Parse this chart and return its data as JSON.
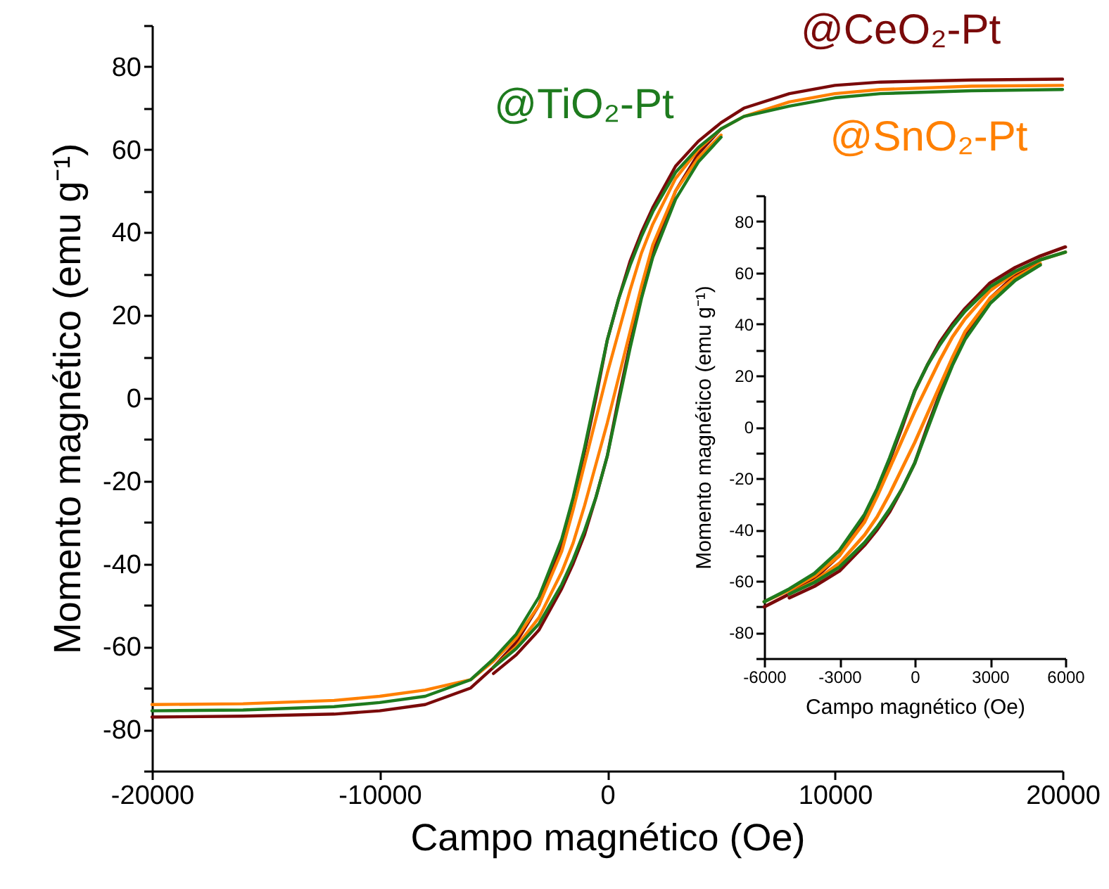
{
  "chart_data": [
    {
      "type": "line",
      "xlabel": "Campo magnético (Oe)",
      "ylabel": "Momento magnético (emu g⁻¹)",
      "xlim": [
        -20000,
        20000
      ],
      "xticks": [
        -20000,
        -10000,
        0,
        10000,
        20000
      ],
      "ylim": [
        -90,
        90
      ],
      "yticks": [
        {
          "value": -90,
          "label": null
        },
        -80,
        {
          "value": -70,
          "label": null
        },
        -60,
        {
          "value": -50,
          "label": null
        },
        -40,
        {
          "value": -30,
          "label": null
        },
        -20,
        {
          "value": -10,
          "label": null
        },
        0,
        {
          "value": 10,
          "label": null
        },
        20,
        {
          "value": 30,
          "label": null
        },
        40,
        {
          "value": 50,
          "label": null
        },
        60,
        {
          "value": 70,
          "label": null
        },
        80,
        {
          "value": 90,
          "label": null
        }
      ],
      "x": [
        -20000,
        -16000,
        -12000,
        -10000,
        -8000,
        -6000,
        -5000,
        -4000,
        -3000,
        -2000,
        -1500,
        -1000,
        -500,
        0,
        500,
        1000,
        1500,
        2000,
        3000,
        4000,
        5000,
        6000,
        8000,
        10000,
        12000,
        16000,
        20000
      ],
      "series": [
        {
          "name": "@CeO₂-Pt",
          "color": "#7a0a0a",
          "values": [
            -77,
            -76.8,
            -76.3,
            -75.5,
            -74,
            -70,
            -65,
            -59,
            -50,
            -35,
            -25,
            -13,
            0,
            14,
            24,
            33,
            40,
            46,
            56,
            62,
            66.5,
            70,
            73.5,
            75.5,
            76.3,
            76.8,
            77
          ]
        },
        {
          "color": "#7a0a0a",
          "x": [
            -5000,
            -4000,
            -3000,
            -2000,
            -1500,
            -1000,
            -500,
            0,
            500,
            1000,
            1500,
            2000,
            3000,
            4000,
            5000
          ],
          "values": [
            -66.5,
            -62,
            -56,
            -46,
            -40,
            -33,
            -24,
            -14,
            0,
            13,
            25,
            35,
            50,
            59,
            65
          ]
        },
        {
          "name": "@SnO₂-Pt",
          "color": "#ff8000",
          "values": [
            -74,
            -73.8,
            -73,
            -72,
            -70.5,
            -68,
            -63.5,
            -58,
            -50,
            -37,
            -27,
            -16,
            -5,
            6,
            16,
            26,
            35,
            42,
            53,
            60,
            65,
            68,
            71.5,
            73.5,
            74.5,
            75.3,
            75.5
          ]
        },
        {
          "color": "#ff8000",
          "x": [
            -5000,
            -4000,
            -3000,
            -2000,
            -1500,
            -1000,
            -500,
            0,
            500,
            1000,
            1500,
            2000,
            3000,
            4000,
            5000
          ],
          "values": [
            -65,
            -60,
            -53,
            -42,
            -35,
            -26,
            -16,
            -6,
            5,
            16,
            27,
            37,
            50,
            58,
            63.5
          ]
        },
        {
          "name": "@TiO₂-Pt",
          "color": "#1e7b1e",
          "values": [
            -75.5,
            -75.3,
            -74.5,
            -73.5,
            -72,
            -68,
            -63,
            -57,
            -48,
            -34,
            -24,
            -12,
            1,
            14,
            24,
            32,
            39,
            45,
            54.5,
            60.5,
            65,
            68,
            70.5,
            72.5,
            73.5,
            74.2,
            74.5
          ]
        },
        {
          "color": "#1e7b1e",
          "x": [
            -5000,
            -4000,
            -3000,
            -2000,
            -1500,
            -1000,
            -500,
            0,
            500,
            1000,
            1500,
            2000,
            3000,
            4000,
            5000
          ],
          "values": [
            -65,
            -60.5,
            -54.5,
            -45,
            -39,
            -32,
            -24,
            -14,
            -1,
            12,
            24,
            34,
            48,
            57,
            63
          ]
        }
      ]
    },
    {
      "type": "line",
      "xlabel": "Campo magnético (Oe)",
      "ylabel": "Momento magnético (emu g⁻¹)",
      "xlim": [
        -6000,
        6000
      ],
      "xticks": [
        -6000,
        -3000,
        0,
        3000,
        6000
      ],
      "ylim": [
        -90,
        90
      ],
      "yticks": [
        {
          "value": -90,
          "label": null
        },
        -80,
        {
          "value": -70,
          "label": null
        },
        -60,
        {
          "value": -50,
          "label": null
        },
        -40,
        {
          "value": -30,
          "label": null
        },
        -20,
        {
          "value": -10,
          "label": null
        },
        0,
        {
          "value": 10,
          "label": null
        },
        20,
        {
          "value": 30,
          "label": null
        },
        40,
        {
          "value": 50,
          "label": null
        },
        60,
        {
          "value": 70,
          "label": null
        },
        80,
        {
          "value": 90,
          "label": null
        }
      ],
      "x": [
        -6000,
        -5000,
        -4000,
        -3000,
        -2000,
        -1500,
        -1000,
        -500,
        0,
        500,
        1000,
        1500,
        2000,
        3000,
        4000,
        5000,
        6000
      ],
      "series": [
        {
          "color": "#7a0a0a",
          "values": [
            -70,
            -65,
            -59,
            -50,
            -35,
            -25,
            -13,
            0,
            14,
            24,
            33,
            40,
            46,
            56,
            62,
            66.5,
            70
          ]
        },
        {
          "color": "#7a0a0a",
          "x": [
            -5000,
            -4000,
            -3000,
            -2000,
            -1500,
            -1000,
            -500,
            0,
            500,
            1000,
            1500,
            2000,
            3000,
            4000,
            5000
          ],
          "values": [
            -66.5,
            -62,
            -56,
            -46,
            -40,
            -33,
            -24,
            -14,
            0,
            13,
            25,
            35,
            50,
            59,
            65
          ]
        },
        {
          "color": "#ff8000",
          "values": [
            -68,
            -63.5,
            -58,
            -50,
            -37,
            -27,
            -16,
            -5,
            6,
            16,
            26,
            35,
            42,
            53,
            60,
            65,
            68
          ]
        },
        {
          "color": "#ff8000",
          "x": [
            -5000,
            -4000,
            -3000,
            -2000,
            -1500,
            -1000,
            -500,
            0,
            500,
            1000,
            1500,
            2000,
            3000,
            4000,
            5000
          ],
          "values": [
            -65,
            -60,
            -53,
            -42,
            -35,
            -26,
            -16,
            -6,
            5,
            16,
            27,
            37,
            50,
            58,
            63.5
          ]
        },
        {
          "color": "#1e7b1e",
          "values": [
            -68,
            -63,
            -57,
            -48,
            -34,
            -24,
            -12,
            1,
            14,
            24,
            32,
            39,
            45,
            54.5,
            60.5,
            65,
            68
          ]
        },
        {
          "color": "#1e7b1e",
          "x": [
            -5000,
            -4000,
            -3000,
            -2000,
            -1500,
            -1000,
            -500,
            0,
            500,
            1000,
            1500,
            2000,
            3000,
            4000,
            5000
          ],
          "values": [
            -65,
            -60.5,
            -54.5,
            -45,
            -39,
            -32,
            -24,
            -14,
            -1,
            12,
            24,
            34,
            48,
            57,
            63
          ]
        }
      ]
    }
  ]
}
